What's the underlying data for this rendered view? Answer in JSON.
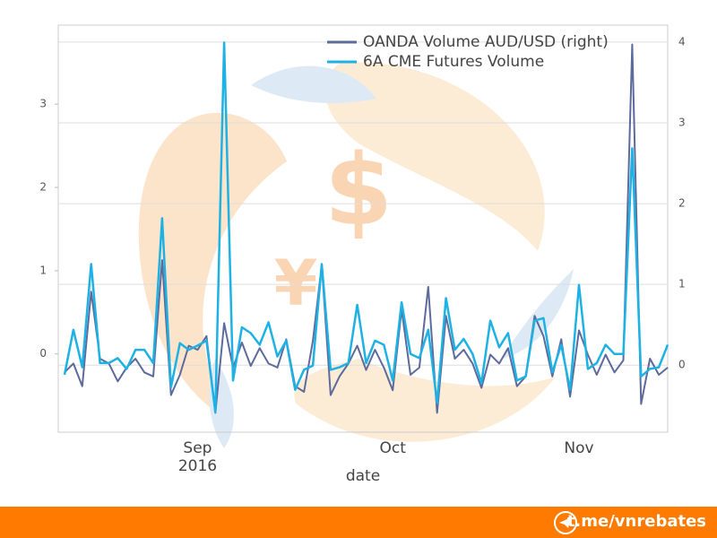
{
  "chart_data": {
    "type": "line",
    "xlabel": "date",
    "categories": [
      null,
      null,
      null,
      null,
      null,
      null,
      null,
      null,
      null,
      null,
      null,
      null,
      null,
      null,
      null,
      "Sep",
      null,
      null,
      null,
      null,
      null,
      null,
      null,
      null,
      null,
      null,
      null,
      null,
      null,
      null,
      null,
      null,
      null,
      null,
      null,
      null,
      null,
      "Oct",
      null,
      null,
      null,
      null,
      null,
      null,
      null,
      null,
      null,
      null,
      null,
      null,
      null,
      null,
      null,
      null,
      null,
      null,
      null,
      null,
      "Nov",
      null,
      null,
      null,
      null,
      null,
      null,
      null,
      null,
      null,
      null
    ],
    "year": "2016",
    "ylim": [
      -0.94,
      3.95
    ],
    "yticks": [
      0,
      1,
      2,
      3
    ],
    "y2lim": [
      -0.83,
      4.21
    ],
    "y2ticks": [
      0,
      1,
      2,
      3,
      4
    ],
    "grid": "y2",
    "legend": "upper right",
    "series": [
      {
        "name": "OANDA Volume AUD/USD (right)",
        "color": "#5d6a9c",
        "axis": "y2",
        "values": [
          -0.09,
          0.02,
          -0.26,
          0.91,
          0.08,
          0.02,
          -0.2,
          -0.03,
          0.08,
          -0.09,
          -0.14,
          1.3,
          -0.37,
          -0.12,
          0.24,
          0.19,
          0.36,
          -0.59,
          0.52,
          -0.03,
          0.28,
          -0.01,
          0.21,
          0.02,
          -0.03,
          0.32,
          -0.26,
          -0.33,
          0.3,
          1.24,
          -0.37,
          -0.14,
          0.02,
          0.24,
          -0.06,
          0.19,
          -0.03,
          -0.31,
          0.69,
          -0.12,
          -0.03,
          0.97,
          -0.59,
          0.61,
          0.08,
          0.19,
          0.02,
          -0.28,
          0.13,
          0.02,
          0.21,
          -0.26,
          -0.14,
          0.61,
          0.36,
          -0.14,
          0.32,
          -0.39,
          0.43,
          0.13,
          -0.12,
          0.13,
          -0.09,
          0.06,
          3.97,
          -0.48,
          0.08,
          -0.12,
          -0.03
        ]
      },
      {
        "name": "6A CME Futures Volume",
        "color": "#1db2e3",
        "values": [
          -0.25,
          0.29,
          -0.16,
          1.08,
          -0.11,
          -0.11,
          -0.05,
          -0.18,
          0.05,
          0.05,
          -0.11,
          1.63,
          -0.4,
          0.13,
          0.05,
          0.1,
          0.16,
          -0.7,
          3.74,
          -0.32,
          0.32,
          0.25,
          0.11,
          0.38,
          -0.03,
          0.16,
          -0.43,
          -0.19,
          -0.14,
          1.08,
          -0.19,
          -0.16,
          -0.11,
          0.59,
          -0.11,
          0.16,
          0.11,
          -0.32,
          0.62,
          0,
          -0.05,
          0.29,
          -0.59,
          0.67,
          0.05,
          0.18,
          0,
          -0.35,
          0.4,
          0.08,
          0.25,
          -0.32,
          -0.27,
          0.4,
          0.43,
          -0.22,
          0.11,
          -0.43,
          0.83,
          -0.18,
          -0.11,
          0.11,
          0,
          0,
          2.47,
          -0.27,
          -0.18,
          -0.16,
          0.11
        ]
      }
    ]
  },
  "footer": {
    "text": "t.me/vnrebates"
  }
}
